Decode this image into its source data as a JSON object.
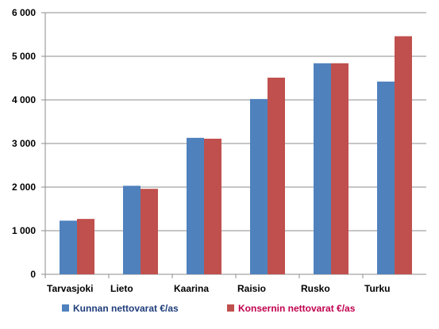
{
  "chart_data": {
    "type": "bar",
    "categories": [
      "Tarvasjoki",
      "Lieto",
      "Kaarina",
      "Raisio",
      "Rusko",
      "Turku"
    ],
    "series": [
      {
        "name": "Kunnan nettovarat €/as",
        "color": "#4F81BD",
        "values": [
          1230,
          2030,
          3130,
          4020,
          4840,
          4420
        ]
      },
      {
        "name": "Konsernin nettovarat €/as",
        "color": "#C0504D",
        "values": [
          1270,
          1960,
          3110,
          4510,
          4840,
          5460
        ]
      }
    ],
    "yticks": [
      0,
      1000,
      2000,
      3000,
      4000,
      5000,
      6000
    ],
    "ytick_labels": [
      "0",
      "1 000",
      "2 000",
      "3 000",
      "4 000",
      "5 000",
      "6 000"
    ],
    "ylim": [
      0,
      6000
    ],
    "grid": "horizontal",
    "legend_position": "bottom",
    "legend_text_color": "#1F3D7A",
    "legend_text_color_2": "#C0004D"
  }
}
